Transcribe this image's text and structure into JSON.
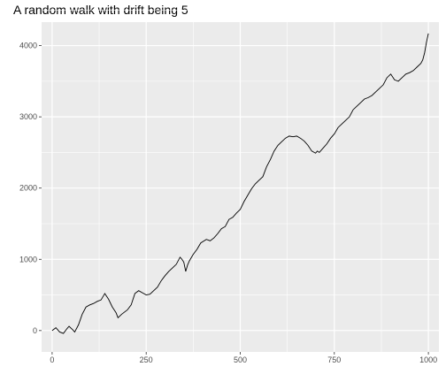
{
  "chart_data": {
    "type": "line",
    "title": "A random walk with drift being 5",
    "xlabel": "",
    "ylabel": "",
    "xlim": [
      -28,
      1028
    ],
    "ylim": [
      -300,
      4330
    ],
    "x_ticks": [
      0,
      250,
      500,
      750,
      1000
    ],
    "y_ticks": [
      0,
      1000,
      2000,
      3000,
      4000
    ],
    "x_tick_labels": [
      "0",
      "250",
      "500",
      "750",
      "1000"
    ],
    "y_tick_labels": [
      "0",
      "1000",
      "2000",
      "3000",
      "4000"
    ],
    "grid": true,
    "legend": "none",
    "colors": {
      "panel": "#ebebeb",
      "grid": "#ffffff",
      "line": "#000000",
      "tick_text": "#4d4d4d"
    },
    "series": [
      {
        "x": [
          0,
          10,
          20,
          30,
          40,
          45,
          55,
          60,
          70,
          80,
          90,
          100,
          110,
          120,
          130,
          140,
          150,
          160,
          170,
          175,
          185,
          200,
          210,
          220,
          230,
          240,
          250,
          260,
          270,
          280,
          290,
          300,
          310,
          320,
          330,
          340,
          345,
          350,
          355,
          360,
          365,
          375,
          385,
          395,
          410,
          420,
          430,
          440,
          450,
          460,
          470,
          480,
          490,
          500,
          510,
          520,
          530,
          540,
          550,
          560,
          570,
          580,
          590,
          600,
          610,
          620,
          630,
          640,
          650,
          660,
          670,
          680,
          690,
          700,
          705,
          710,
          720,
          730,
          740,
          750,
          760,
          770,
          780,
          790,
          800,
          810,
          820,
          830,
          840,
          850,
          860,
          870,
          880,
          890,
          900,
          910,
          920,
          930,
          940,
          950,
          960,
          970,
          980,
          985,
          990,
          995,
          1000
        ],
        "y": [
          0,
          40,
          -20,
          -40,
          30,
          60,
          10,
          -20,
          80,
          230,
          330,
          360,
          380,
          410,
          430,
          520,
          440,
          330,
          250,
          180,
          230,
          290,
          360,
          520,
          560,
          530,
          500,
          510,
          560,
          610,
          700,
          770,
          830,
          880,
          930,
          1030,
          1000,
          960,
          830,
          920,
          980,
          1070,
          1140,
          1230,
          1280,
          1260,
          1300,
          1360,
          1430,
          1460,
          1560,
          1590,
          1650,
          1700,
          1810,
          1900,
          1990,
          2060,
          2110,
          2160,
          2300,
          2400,
          2520,
          2600,
          2650,
          2700,
          2730,
          2720,
          2730,
          2700,
          2660,
          2600,
          2520,
          2490,
          2520,
          2500,
          2560,
          2620,
          2700,
          2760,
          2850,
          2900,
          2950,
          3000,
          3100,
          3150,
          3200,
          3250,
          3270,
          3300,
          3350,
          3400,
          3450,
          3550,
          3600,
          3520,
          3500,
          3550,
          3600,
          3620,
          3650,
          3700,
          3750,
          3800,
          3900,
          4050,
          4170
        ]
      }
    ]
  }
}
